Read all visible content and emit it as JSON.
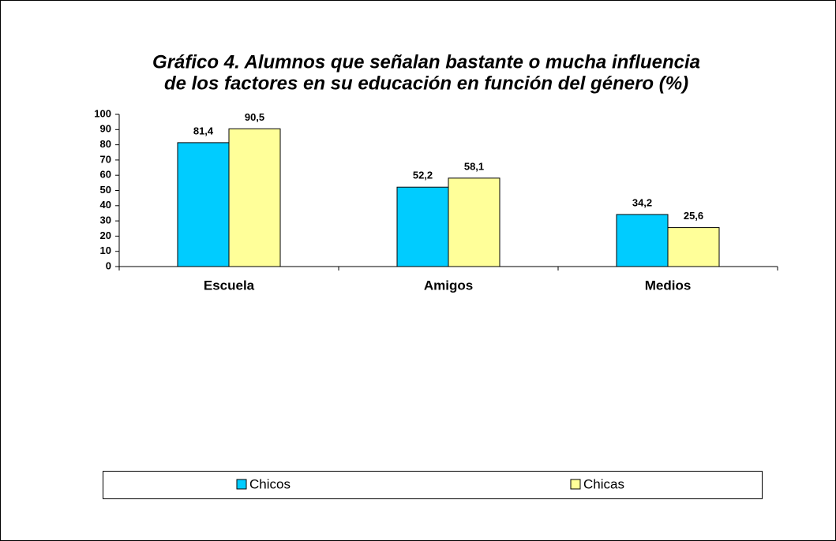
{
  "chart_data": {
    "type": "bar",
    "title": [
      "Gráfico 4. Alumnos que señalan bastante o mucha influencia",
      "de los factores en su educación en función del género (%)"
    ],
    "categories": [
      "Escuela",
      "Amigos",
      "Medios"
    ],
    "series": [
      {
        "name": "Chicos",
        "color": "#00ccff",
        "values": [
          81.4,
          52.2,
          34.2
        ],
        "value_labels": [
          "81,4",
          "52,2",
          "34,2"
        ]
      },
      {
        "name": "Chicas",
        "color": "#ffff99",
        "values": [
          90.5,
          58.1,
          25.6
        ],
        "value_labels": [
          "90,5",
          "58,1",
          "25,6"
        ]
      }
    ],
    "ylim": [
      0,
      100
    ],
    "yticks": [
      0,
      10,
      20,
      30,
      40,
      50,
      60,
      70,
      80,
      90,
      100
    ],
    "grid": false,
    "legend": "bottom"
  }
}
